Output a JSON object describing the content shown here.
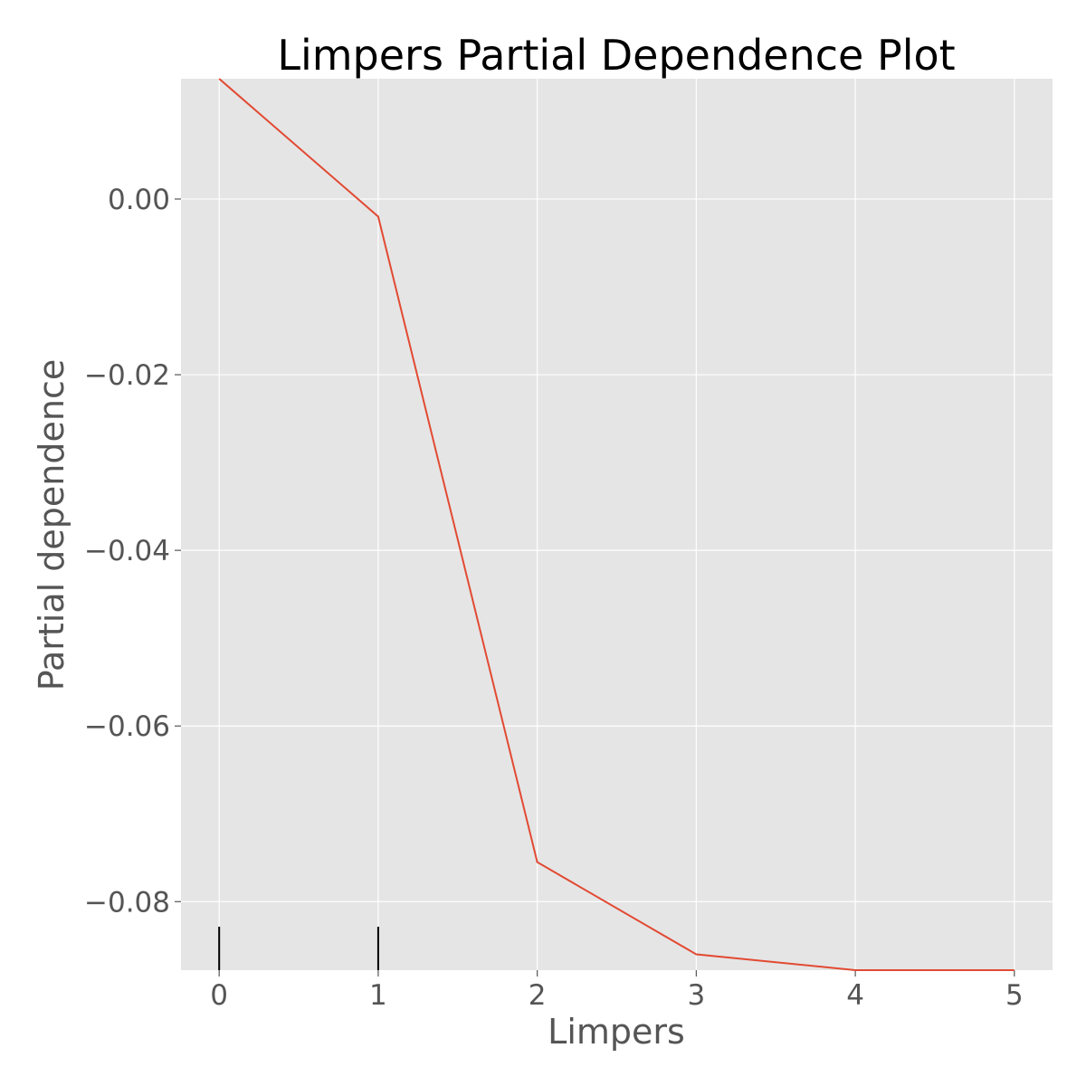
{
  "chart_data": {
    "type": "line",
    "title": "Limpers Partial Dependence Plot",
    "xlabel": "Limpers",
    "ylabel": "Partial dependence",
    "x": [
      0,
      1,
      2,
      3,
      4,
      5
    ],
    "series": [
      {
        "values": [
          0.0137,
          -0.002,
          -0.0755,
          -0.086,
          -0.0878,
          -0.0878
        ]
      }
    ],
    "xlim": [
      -0.24,
      5.24
    ],
    "ylim": [
      -0.0878,
      0.0137
    ],
    "xticks": [
      0,
      1,
      2,
      3,
      4,
      5
    ],
    "xtick_labels": [
      "0",
      "1",
      "2",
      "3",
      "4",
      "5"
    ],
    "yticks": [
      0.0,
      -0.02,
      -0.04,
      -0.06,
      -0.08
    ],
    "ytick_labels": [
      "0.00",
      "−0.02",
      "−0.04",
      "−0.06",
      "−0.08"
    ],
    "rug": [
      0,
      1
    ],
    "grid": true,
    "colors": {
      "line": "#e24a33",
      "plot_background": "#e5e5e5",
      "grid": "#ffffff",
      "rug": "#000000"
    }
  }
}
